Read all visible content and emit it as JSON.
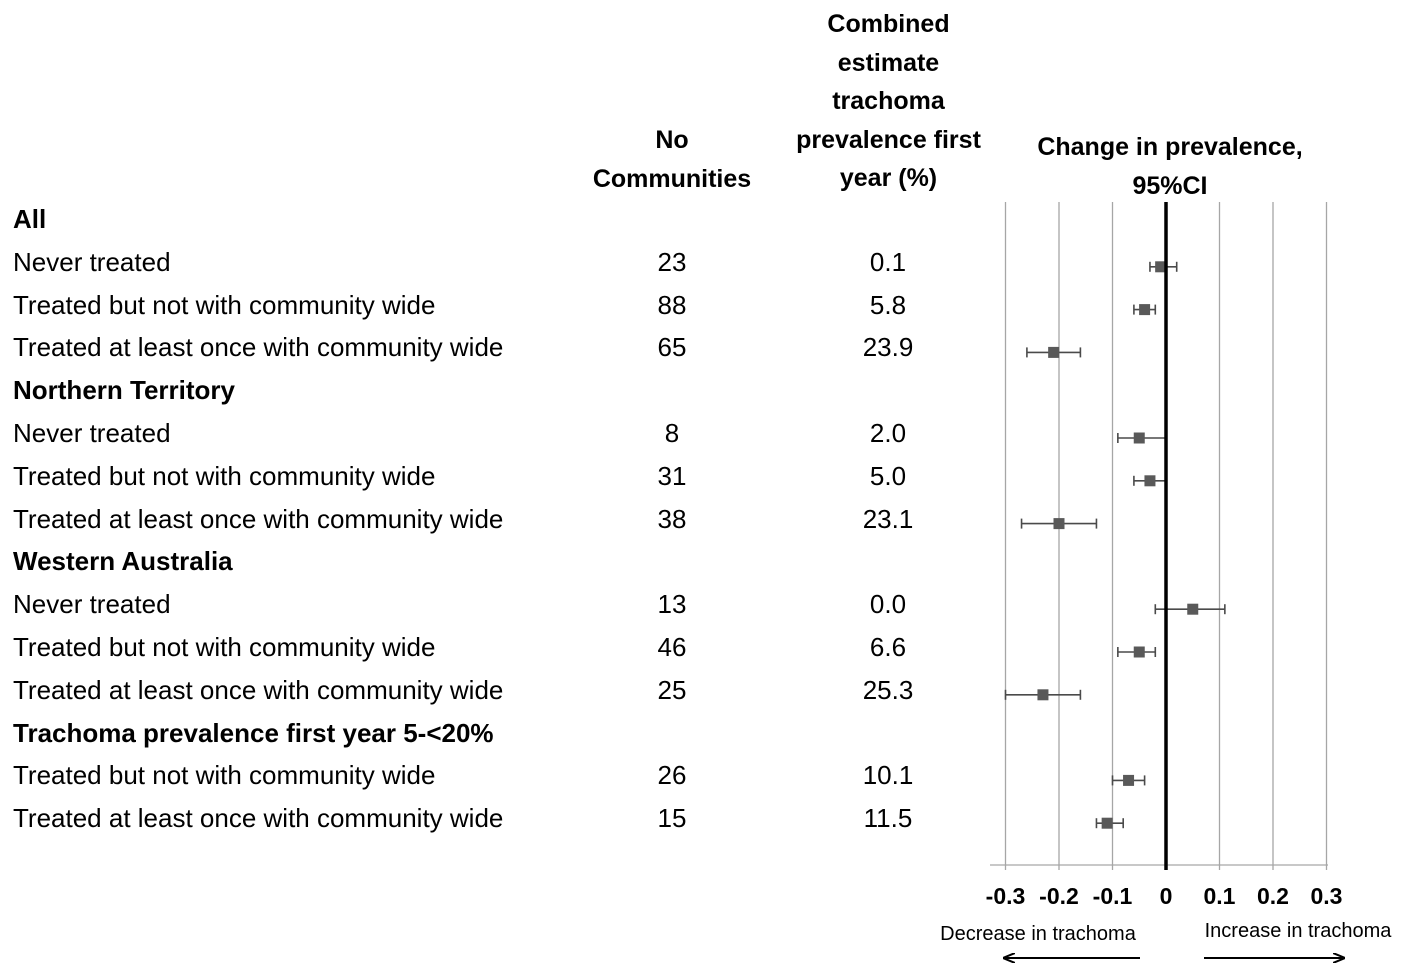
{
  "headers": {
    "communities": [
      "No",
      "Communities"
    ],
    "combined": [
      "Combined",
      "estimate",
      "trachoma",
      "prevalence first",
      "year (%)"
    ],
    "change": [
      "Change in prevalence,",
      "95%CI"
    ]
  },
  "chart_data": {
    "type": "forest",
    "xlim": [
      -0.3,
      0.3
    ],
    "ticks": [
      -0.3,
      -0.2,
      -0.1,
      0,
      0.1,
      0.2,
      0.3
    ],
    "tick_labels": [
      "-0.3",
      "-0.2",
      "-0.1",
      "0",
      "0.1",
      "0.2",
      "0.3"
    ],
    "grid": true,
    "annotations": {
      "left": "Decrease in trachoma",
      "right": "Increase in trachoma"
    },
    "rows": [
      {
        "label": "All",
        "group": true
      },
      {
        "label": "Never treated",
        "n": "23",
        "prev": "0.1",
        "est": -0.01,
        "lo": -0.03,
        "hi": 0.02
      },
      {
        "label": "Treated but not with community wide",
        "n": "88",
        "prev": "5.8",
        "est": -0.04,
        "lo": -0.06,
        "hi": -0.02
      },
      {
        "label": "Treated at least once with community wide",
        "n": "65",
        "prev": "23.9",
        "est": -0.21,
        "lo": -0.26,
        "hi": -0.16
      },
      {
        "label": "Northern Territory",
        "group": true
      },
      {
        "label": "Never treated",
        "n": "8",
        "prev": "2.0",
        "est": -0.05,
        "lo": -0.09,
        "hi": 0.0
      },
      {
        "label": "Treated but not with community wide",
        "n": "31",
        "prev": "5.0",
        "est": -0.03,
        "lo": -0.06,
        "hi": 0.0
      },
      {
        "label": "Treated at least once with community wide",
        "n": "38",
        "prev": "23.1",
        "est": -0.2,
        "lo": -0.27,
        "hi": -0.13
      },
      {
        "label": "Western Australia",
        "group": true
      },
      {
        "label": "Never treated",
        "n": "13",
        "prev": "0.0",
        "est": 0.05,
        "lo": -0.02,
        "hi": 0.11
      },
      {
        "label": "Treated but not with community wide",
        "n": "46",
        "prev": "6.6",
        "est": -0.05,
        "lo": -0.09,
        "hi": -0.02
      },
      {
        "label": "Treated at least once with community wide",
        "n": "25",
        "prev": "25.3",
        "est": -0.23,
        "lo": -0.3,
        "hi": -0.16
      },
      {
        "label": "Trachoma prevalence first year 5-<20%",
        "group": true
      },
      {
        "label": "Treated but not with community wide",
        "n": "26",
        "prev": "10.1",
        "est": -0.07,
        "lo": -0.1,
        "hi": -0.04
      },
      {
        "label": "Treated at least once with community wide",
        "n": "15",
        "prev": "11.5",
        "est": -0.11,
        "lo": -0.13,
        "hi": -0.08
      }
    ]
  }
}
